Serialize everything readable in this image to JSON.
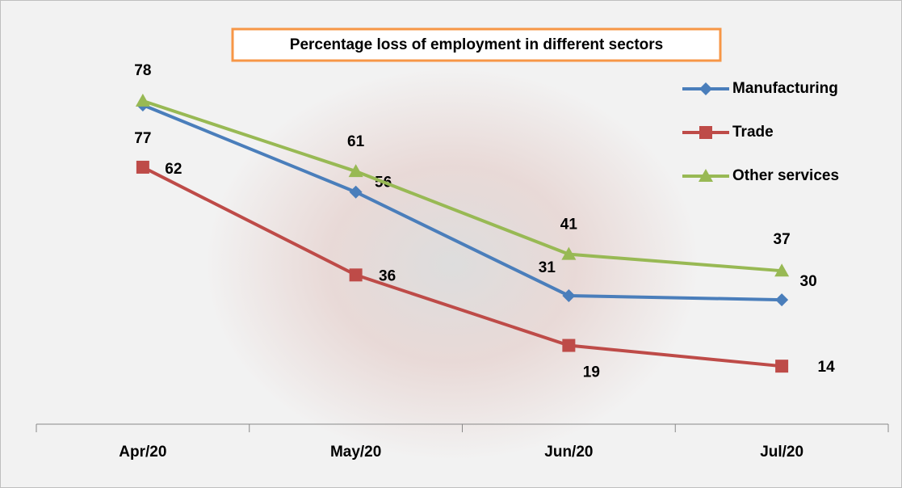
{
  "chart_data": {
    "type": "line",
    "title": "Percentage loss of employment in different sectors",
    "categories": [
      "Apr/20",
      "May/20",
      "Jun/20",
      "Jul/20"
    ],
    "series": [
      {
        "name": "Manufacturing",
        "color": "#4a7ebb",
        "marker": "diamond",
        "values": [
          77,
          56,
          31,
          30
        ]
      },
      {
        "name": "Trade",
        "color": "#be4b48",
        "marker": "square",
        "values": [
          62,
          36,
          19,
          14
        ]
      },
      {
        "name": "Other services",
        "color": "#98b954",
        "marker": "triangle",
        "values": [
          78,
          61,
          41,
          37
        ]
      }
    ],
    "ylim": [
      0,
      100
    ],
    "legend": "right"
  }
}
